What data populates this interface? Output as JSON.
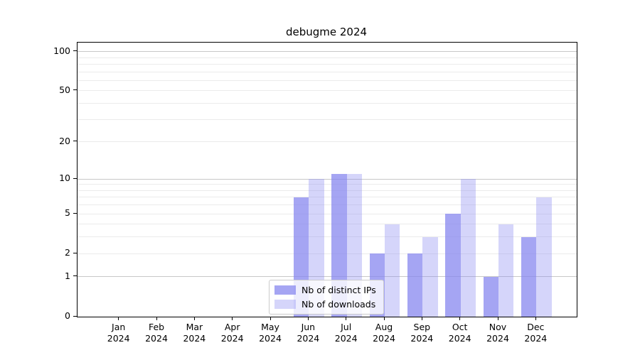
{
  "chart_data": {
    "type": "bar",
    "title": "debugme 2024",
    "categories": [
      "Jan",
      "Feb",
      "Mar",
      "Apr",
      "May",
      "Jun",
      "Jul",
      "Aug",
      "Sep",
      "Oct",
      "Nov",
      "Dec"
    ],
    "x_year_label": "2024",
    "series": [
      {
        "name": "Nb of distinct IPs",
        "color": "rgba(133,133,239,0.74)",
        "values": [
          0,
          0,
          0,
          0,
          0,
          7,
          11,
          2,
          2,
          5,
          1,
          3
        ]
      },
      {
        "name": "Nb of downloads",
        "color": "rgba(133,133,239,0.34)",
        "values": [
          0,
          0,
          0,
          0,
          0,
          10,
          11,
          4,
          3,
          10,
          4,
          7
        ]
      }
    ],
    "yscale": "log1p",
    "ylim": [
      0,
      117
    ],
    "yticks": [
      0,
      1,
      2,
      5,
      10,
      20,
      50,
      100
    ],
    "major_gridlines": [
      1,
      10,
      100
    ],
    "minor_gridlines": [
      2,
      3,
      4,
      5,
      6,
      7,
      8,
      9,
      20,
      30,
      40,
      50,
      60,
      70,
      80,
      90
    ],
    "grid": "on",
    "legend_position": "lower center",
    "colors": {
      "axis": "#000000",
      "major_grid": "#c8c8c8",
      "minor_grid": "#ebebeb",
      "background": "#ffffff"
    }
  }
}
